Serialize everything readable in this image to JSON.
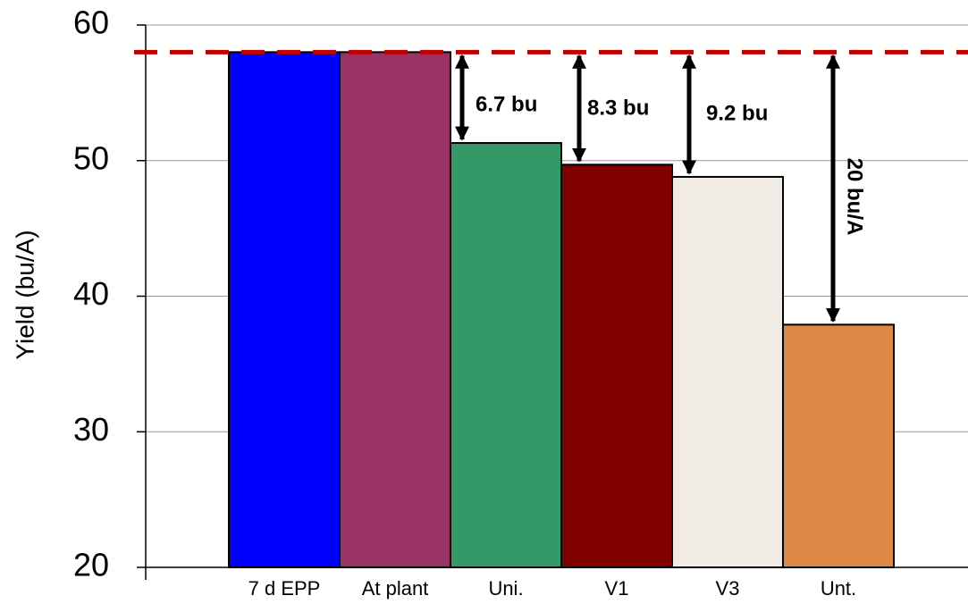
{
  "chart_data": {
    "type": "bar",
    "y_label": "Yield (bu/A)",
    "categories": [
      "7 d EPP",
      "At plant",
      "Uni.",
      "V1",
      "V3",
      "Unt."
    ],
    "values": [
      58,
      58,
      51.3,
      49.7,
      48.8,
      37.9
    ],
    "colors": [
      "#0000ff",
      "#993366",
      "#339966",
      "#800000",
      "#f0ebe4",
      "#dd8844"
    ],
    "ylim": [
      20,
      60
    ],
    "yticks": [
      20,
      30,
      40,
      50,
      60
    ],
    "grid": true,
    "reference_line": {
      "value": 58,
      "color": "#c00000"
    },
    "annotations": [
      "6.7 bu",
      "8.3 bu",
      "9.2 bu",
      "20 bu/A"
    ]
  }
}
